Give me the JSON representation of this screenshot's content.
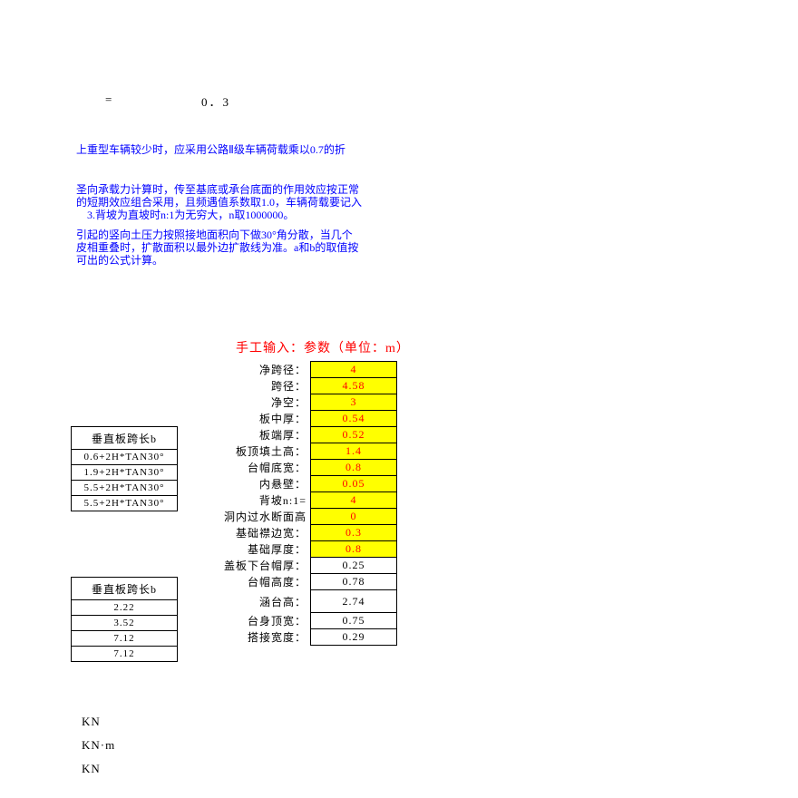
{
  "equation": {
    "lhs": "=",
    "rhs": "0．3"
  },
  "notes": {
    "n1": "上重型车辆较少时，应采用公路Ⅱ级车辆荷载乘以0.7的折",
    "n2": "圣向承载力计算时，传至基底或承台底面的作用效应按正常\n的短期效应组合采用，且频遇值系数取1.0，车辆荷载要记入\n　3.背坡为直坡时n:1为无穷大，n取1000000。",
    "n3": "引起的竖向土压力按照接地面积向下做30°角分散，当几个\n皮相重叠时，扩散面积以最外边扩散线为准。a和b的取值按\n可出的公式计算。"
  },
  "title": "手工输入：参数（单位：m）",
  "params": [
    {
      "label": "净跨径：",
      "value": "4",
      "yellow": true,
      "red": true
    },
    {
      "label": "跨径：",
      "value": "4.58",
      "yellow": true,
      "red": true
    },
    {
      "label": "净空：",
      "value": "3",
      "yellow": true,
      "red": true
    },
    {
      "label": "板中厚：",
      "value": "0.54",
      "yellow": true,
      "red": true
    },
    {
      "label": "板端厚：",
      "value": "0.52",
      "yellow": true,
      "red": true
    },
    {
      "label": "板顶填土高：",
      "value": "1.4",
      "yellow": true,
      "red": true
    },
    {
      "label": "台帽底宽：",
      "value": "0.8",
      "yellow": true,
      "red": true
    },
    {
      "label": "内悬壁：",
      "value": "0.05",
      "yellow": true,
      "red": true
    },
    {
      "label": "背坡n:1=",
      "value": "4",
      "yellow": true,
      "red": true
    },
    {
      "label": "洞内过水断面高",
      "value": "0",
      "yellow": true,
      "red": true
    },
    {
      "label": "基础襟边宽：",
      "value": "0.3",
      "yellow": true,
      "red": true
    },
    {
      "label": "基础厚度：",
      "value": "0.8",
      "yellow": true,
      "red": true
    },
    {
      "label": "盖板下台帽厚：",
      "value": "0.25",
      "yellow": false,
      "red": false
    },
    {
      "label": "台帽高度：",
      "value": "0.78",
      "yellow": false,
      "red": false
    },
    {
      "label": "涵台高：",
      "value": "2.74",
      "yellow": false,
      "red": false
    },
    {
      "label": "台身顶宽：",
      "value": "0.75",
      "yellow": false,
      "red": false
    },
    {
      "label": "搭接宽度：",
      "value": "0.29",
      "yellow": false,
      "red": false
    }
  ],
  "side_table_a": {
    "header": "垂直板跨长b",
    "rows": [
      "0.6+2H*TAN30°",
      "1.9+2H*TAN30°",
      "5.5+2H*TAN30°",
      "5.5+2H*TAN30°"
    ]
  },
  "side_table_b": {
    "header": "垂直板跨长b",
    "rows": [
      "2.22",
      "3.52",
      "7.12",
      "7.12"
    ]
  },
  "units": [
    "KN",
    "KN·m",
    "KN"
  ],
  "colors": {
    "blue": "#0000ff",
    "red": "#ff0000",
    "yellow": "#ffff00",
    "black": "#000000",
    "background": "#ffffff"
  },
  "typography": {
    "base_font": "SimSun",
    "base_size_pt": 9,
    "title_size_pt": 11
  }
}
